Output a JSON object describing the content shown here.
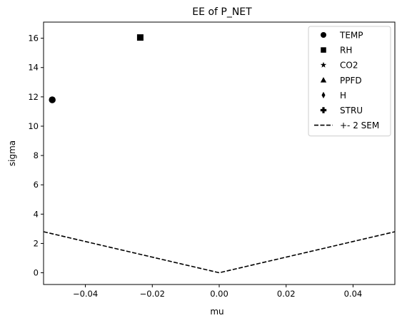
{
  "chart_data": {
    "type": "scatter",
    "title": "EE of P_NET",
    "xlabel": "mu",
    "ylabel": "sigma",
    "xlim": [
      -0.0525,
      0.0525
    ],
    "ylim": [
      -0.8,
      17.1
    ],
    "xticks": [
      -0.04,
      -0.02,
      0.0,
      0.02,
      0.04
    ],
    "xtick_labels": [
      "−0.04",
      "−0.02",
      "0.00",
      "0.02",
      "0.04"
    ],
    "yticks": [
      0,
      2,
      4,
      6,
      8,
      10,
      12,
      14,
      16
    ],
    "ytick_labels": [
      "0",
      "2",
      "4",
      "6",
      "8",
      "10",
      "12",
      "14",
      "16"
    ],
    "grid": false,
    "legend_position": "top-right",
    "series": [
      {
        "name": "TEMP",
        "marker": "circle",
        "points": [
          [
            -0.0499,
            11.8
          ]
        ]
      },
      {
        "name": "RH",
        "marker": "square",
        "points": [
          [
            -0.0236,
            16.05
          ]
        ]
      },
      {
        "name": "CO2",
        "marker": "star",
        "points": []
      },
      {
        "name": "PPFD",
        "marker": "triangle",
        "points": []
      },
      {
        "name": "H",
        "marker": "diamond",
        "points": []
      },
      {
        "name": "STRU",
        "marker": "plus",
        "points": []
      }
    ],
    "lines": [
      {
        "name": "+- 2 SEM",
        "style": "dashed",
        "x": [
          -0.0525,
          0.0,
          0.0525
        ],
        "y": [
          2.8,
          0.0,
          2.8
        ]
      }
    ]
  }
}
